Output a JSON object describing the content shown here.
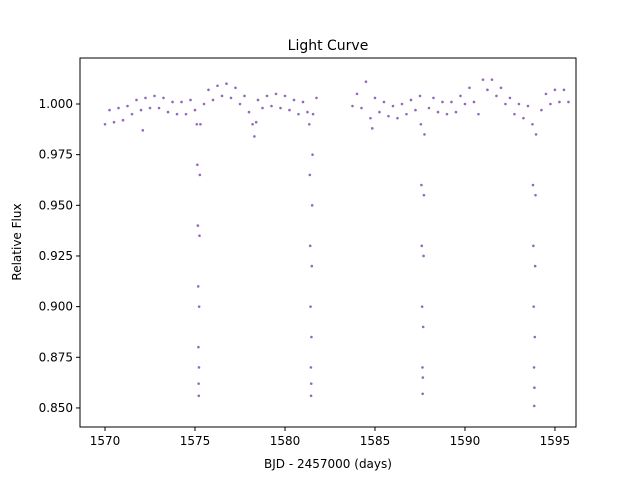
{
  "chart_data": {
    "type": "scatter",
    "title": "Light Curve",
    "xlabel": "BJD - 2457000 (days)",
    "ylabel": "Relative Flux",
    "color": "#9467bd",
    "x": [
      1570.0,
      1570.25,
      1570.5,
      1570.75,
      1571.0,
      1571.25,
      1571.5,
      1571.75,
      1572.0,
      1572.1,
      1572.25,
      1572.5,
      1572.75,
      1573.0,
      1573.25,
      1573.5,
      1573.75,
      1574.0,
      1574.25,
      1574.5,
      1574.75,
      1575.0,
      1575.1,
      1575.13,
      1575.16,
      1575.18,
      1575.19,
      1575.2,
      1575.21,
      1575.22,
      1575.23,
      1575.25,
      1575.27,
      1575.3,
      1575.5,
      1575.75,
      1576.0,
      1576.25,
      1576.5,
      1576.75,
      1577.0,
      1577.25,
      1577.5,
      1577.75,
      1578.0,
      1578.2,
      1578.3,
      1578.4,
      1578.5,
      1578.75,
      1579.0,
      1579.25,
      1579.5,
      1579.75,
      1580.0,
      1580.25,
      1580.5,
      1580.75,
      1581.0,
      1581.25,
      1581.35,
      1581.38,
      1581.4,
      1581.42,
      1581.44,
      1581.45,
      1581.46,
      1581.47,
      1581.49,
      1581.51,
      1581.53,
      1581.56,
      1581.75,
      1583.75,
      1584.0,
      1584.25,
      1584.5,
      1584.75,
      1584.85,
      1585.0,
      1585.25,
      1585.5,
      1585.75,
      1586.0,
      1586.25,
      1586.5,
      1586.75,
      1587.0,
      1587.25,
      1587.5,
      1587.55,
      1587.58,
      1587.6,
      1587.62,
      1587.64,
      1587.65,
      1587.66,
      1587.68,
      1587.7,
      1587.72,
      1587.75,
      1588.0,
      1588.25,
      1588.5,
      1588.75,
      1589.0,
      1589.25,
      1589.5,
      1589.75,
      1590.0,
      1590.25,
      1590.5,
      1590.75,
      1591.0,
      1591.25,
      1591.5,
      1591.75,
      1592.0,
      1592.25,
      1592.5,
      1592.75,
      1593.0,
      1593.25,
      1593.5,
      1593.75,
      1593.78,
      1593.8,
      1593.82,
      1593.84,
      1593.85,
      1593.86,
      1593.88,
      1593.9,
      1593.92,
      1593.95,
      1594.25,
      1594.5,
      1594.75,
      1595.0,
      1595.25,
      1595.5,
      1595.75
    ],
    "values": [
      0.99,
      0.997,
      0.991,
      0.998,
      0.992,
      0.999,
      0.995,
      1.002,
      0.997,
      0.987,
      1.003,
      0.998,
      1.004,
      0.998,
      1.003,
      0.996,
      1.001,
      0.995,
      1.001,
      0.995,
      1.002,
      0.997,
      0.99,
      0.97,
      0.94,
      0.91,
      0.88,
      0.862,
      0.856,
      0.87,
      0.9,
      0.935,
      0.965,
      0.99,
      1.0,
      1.007,
      1.002,
      1.009,
      1.004,
      1.01,
      1.003,
      1.008,
      1.0,
      1.004,
      0.996,
      0.99,
      0.984,
      0.991,
      1.002,
      0.998,
      1.004,
      0.999,
      1.005,
      0.998,
      1.004,
      0.997,
      1.002,
      0.995,
      1.001,
      0.996,
      0.99,
      0.965,
      0.93,
      0.9,
      0.87,
      0.856,
      0.862,
      0.885,
      0.92,
      0.95,
      0.975,
      0.995,
      1.003,
      0.999,
      1.005,
      0.998,
      1.011,
      0.993,
      0.988,
      1.003,
      0.996,
      1.001,
      0.994,
      0.999,
      0.993,
      1.0,
      0.995,
      1.002,
      0.997,
      1.004,
      0.99,
      0.96,
      0.93,
      0.9,
      0.87,
      0.857,
      0.865,
      0.89,
      0.925,
      0.955,
      0.985,
      0.998,
      1.003,
      0.996,
      1.001,
      0.995,
      1.001,
      0.996,
      1.004,
      1.0,
      1.008,
      1.001,
      0.995,
      1.012,
      1.007,
      1.012,
      1.004,
      1.008,
      1.0,
      1.003,
      0.995,
      1.0,
      0.993,
      0.999,
      0.99,
      0.96,
      0.93,
      0.9,
      0.87,
      0.851,
      0.86,
      0.885,
      0.92,
      0.955,
      0.985,
      0.997,
      1.005,
      1.0,
      1.007,
      1.001,
      1.007,
      1.001
    ],
    "xlim": [
      1568.61,
      1596.17
    ],
    "xticks": [
      1570,
      1575,
      1580,
      1585,
      1590,
      1595
    ],
    "ylim": [
      0.8406,
      1.0227
    ],
    "yticks": [
      {
        "value": 0.85,
        "label": "0.850"
      },
      {
        "value": 0.875,
        "label": "0.875"
      },
      {
        "value": 0.9,
        "label": "0.900"
      },
      {
        "value": 0.925,
        "label": "0.925"
      },
      {
        "value": 0.95,
        "label": "0.950"
      },
      {
        "value": 0.975,
        "label": "0.975"
      },
      {
        "value": 1.0,
        "label": "1.000"
      }
    ]
  }
}
